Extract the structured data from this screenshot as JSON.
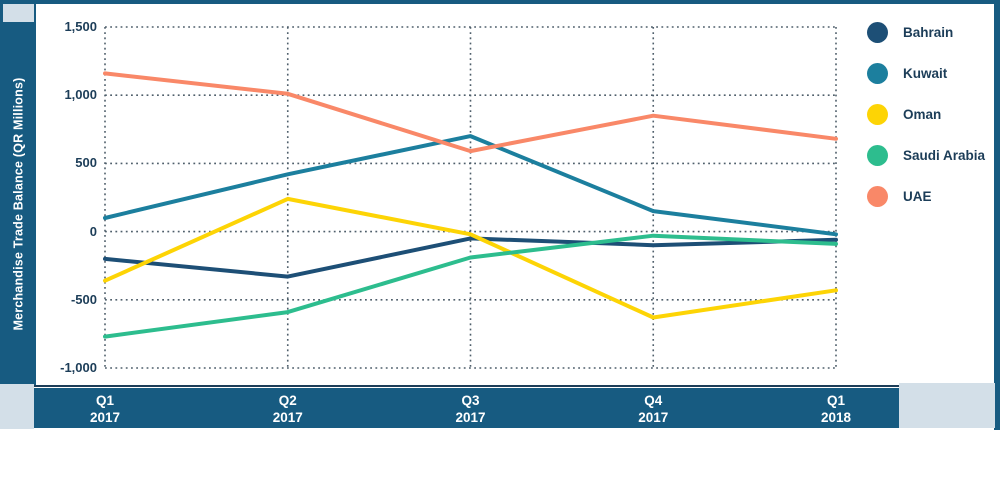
{
  "app": {
    "frame_color": "#175b81",
    "light_block_color": "#d3dfe8",
    "text_color": "#1c3d58",
    "grid_color": "#4f5f6b",
    "background": "#ffffff"
  },
  "y_axis": {
    "title": "Merchandise Trade Balance (QR Millions)",
    "tick_labels": [
      "1,500",
      "1,000",
      "500",
      "0",
      "-500",
      "-1,000"
    ],
    "tick_values": [
      1500,
      1000,
      500,
      0,
      -500,
      -1000
    ]
  },
  "x_axis": {
    "labels": [
      {
        "line1": "Q1",
        "line2": "2017"
      },
      {
        "line1": "Q2",
        "line2": "2017"
      },
      {
        "line1": "Q3",
        "line2": "2017"
      },
      {
        "line1": "Q4",
        "line2": "2017"
      },
      {
        "line1": "Q1",
        "line2": "2018"
      }
    ]
  },
  "legend": {
    "items": [
      {
        "label": "Bahrain",
        "color": "#1d4f76"
      },
      {
        "label": "Kuwait",
        "color": "#1c7f9e"
      },
      {
        "label": "Oman",
        "color": "#fdd405"
      },
      {
        "label": "Saudi Arabia",
        "color": "#2dbd8e"
      },
      {
        "label": "UAE",
        "color": "#f98868"
      }
    ]
  },
  "chart_data": {
    "type": "line",
    "title": "",
    "xlabel": "",
    "ylabel": "Merchandise Trade Balance (QR Millions)",
    "categories": [
      "Q1 2017",
      "Q2 2017",
      "Q3 2017",
      "Q4 2017",
      "Q1 2018"
    ],
    "series": [
      {
        "name": "Bahrain",
        "color": "#1d4f76",
        "values": [
          -200,
          -330,
          -50,
          -100,
          -60
        ]
      },
      {
        "name": "Kuwait",
        "color": "#1c7f9e",
        "values": [
          100,
          420,
          700,
          150,
          -20
        ]
      },
      {
        "name": "Oman",
        "color": "#fdd405",
        "values": [
          -360,
          240,
          -20,
          -630,
          -430
        ]
      },
      {
        "name": "Saudi Arabia",
        "color": "#2dbd8e",
        "values": [
          -770,
          -590,
          -190,
          -30,
          -90
        ]
      },
      {
        "name": "UAE",
        "color": "#f98868",
        "values": [
          1160,
          1010,
          590,
          850,
          680
        ]
      }
    ],
    "ylim": [
      -1000,
      1500
    ],
    "yticks": [
      1500,
      1000,
      500,
      0,
      -500,
      -1000
    ],
    "grid": "dotted-horizontal-and-vertical",
    "legend_position": "right"
  }
}
